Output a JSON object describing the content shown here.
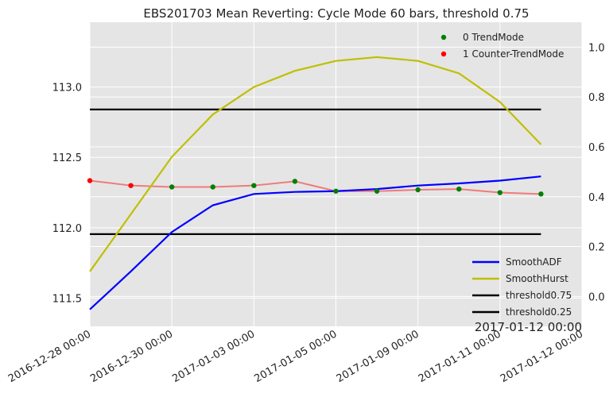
{
  "chart_data": {
    "type": "line",
    "title": "EBS201703 Mean Reverting: Cycle Mode 60 bars, threshold 0.75",
    "corner_label": "2017-01-12 00:00",
    "x_tick_labels": [
      "2016-12-28 00:00",
      "2016-12-30 00:00",
      "2017-01-03 00:00",
      "2017-01-05 00:00",
      "2017-01-09 00:00",
      "2017-01-11 00:00",
      "2017-01-12 00:00"
    ],
    "x_tick_index": [
      0,
      2,
      4,
      6,
      8,
      10,
      12
    ],
    "x_range": [
      0,
      12
    ],
    "y_left": {
      "range": [
        111.3,
        113.46
      ],
      "ticks": [
        111.5,
        112.0,
        112.5,
        113.0
      ],
      "tick_labels": [
        "111.5",
        "112.0",
        "112.5",
        "113.0"
      ]
    },
    "y_right": {
      "range": [
        -0.12,
        1.1
      ],
      "ticks": [
        0.0,
        0.2,
        0.4,
        0.6,
        0.8,
        1.0
      ],
      "tick_labels": [
        "0.0",
        "0.2",
        "0.4",
        "0.6",
        "0.8",
        "1.0"
      ]
    },
    "grid": true,
    "background": "#e5e5e5",
    "price": {
      "color": "#ef7b7b",
      "values": [
        112.335,
        112.3,
        112.29,
        112.29,
        112.3,
        112.33,
        112.26,
        112.26,
        112.27,
        112.275,
        112.25,
        112.24
      ],
      "x": [
        0,
        1,
        2,
        3,
        4,
        5,
        6,
        7,
        8,
        9,
        10,
        11
      ]
    },
    "mode_markers": {
      "x": [
        0,
        1,
        2,
        3,
        4,
        5,
        6,
        7,
        8,
        9,
        10,
        11
      ],
      "mode": [
        1,
        1,
        0,
        0,
        0,
        0,
        0,
        0,
        0,
        0,
        0,
        0
      ]
    },
    "series": [
      {
        "name": "SmoothADF",
        "axis": "left",
        "color": "#0000ff",
        "x": [
          0,
          1,
          2,
          3,
          4,
          5,
          6,
          7,
          8,
          9,
          10,
          11
        ],
        "values": [
          111.42,
          111.69,
          111.97,
          112.16,
          112.24,
          112.255,
          112.26,
          112.275,
          112.3,
          112.315,
          112.335,
          112.365
        ]
      },
      {
        "name": "SmoothHurst",
        "axis": "right",
        "color": "#bfbf00",
        "x": [
          0,
          1,
          2,
          3,
          4,
          5,
          6,
          7,
          8,
          9,
          10,
          11
        ],
        "values": [
          0.1,
          0.33,
          0.56,
          0.73,
          0.84,
          0.905,
          0.945,
          0.96,
          0.945,
          0.895,
          0.78,
          0.61
        ]
      },
      {
        "name": "threshold0.75",
        "axis": "right",
        "color": "#000000",
        "x": [
          0,
          11
        ],
        "values": [
          0.75,
          0.75
        ]
      },
      {
        "name": "threshold0.25",
        "axis": "right",
        "color": "#000000",
        "x": [
          0,
          11
        ],
        "values": [
          0.25,
          0.25
        ]
      }
    ],
    "marker_legend": [
      {
        "label": "0 TrendMode",
        "color": "#008000"
      },
      {
        "label": "1 Counter-TrendMode",
        "color": "#ff0000"
      }
    ],
    "legend_position": "lower-right"
  }
}
